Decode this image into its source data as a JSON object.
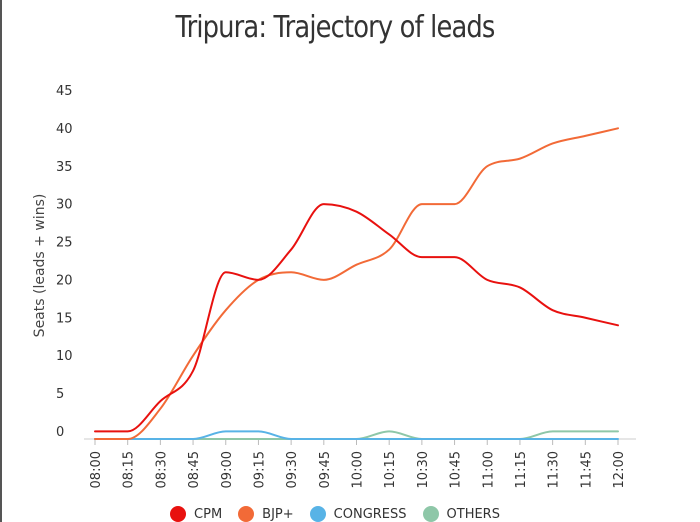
{
  "chart_data": {
    "type": "line",
    "title": "Tripura: Trajectory of leads",
    "xlabel": "",
    "ylabel": "Seats (leads + wins)",
    "categories": [
      "08:00",
      "08:15",
      "08:30",
      "08:45",
      "09:00",
      "09:15",
      "09:30",
      "09:45",
      "10:00",
      "10:15",
      "10:30",
      "10:45",
      "11:00",
      "11:15",
      "11:30",
      "11:45",
      "12:00"
    ],
    "yticks": [
      "0",
      "5",
      "10",
      "15",
      "20",
      "25",
      "30",
      "35",
      "40",
      "45"
    ],
    "ylim": [
      0,
      45
    ],
    "grid": false,
    "legend_position": "bottom",
    "series": [
      {
        "name": "CPM",
        "color": "#e8110f",
        "values": [
          1,
          1,
          5,
          9,
          22,
          21,
          25,
          31,
          30,
          27,
          24,
          24,
          21,
          20,
          17,
          16,
          15
        ]
      },
      {
        "name": "BJP+",
        "color": "#f26a37",
        "values": [
          0,
          0,
          4,
          11,
          17,
          21,
          22,
          21,
          23,
          25,
          31,
          31,
          36,
          37,
          39,
          40,
          41
        ]
      },
      {
        "name": "CONGRESS",
        "color": "#58b3e6",
        "values": [
          0,
          0,
          0,
          0,
          1,
          1,
          0,
          0,
          0,
          0,
          0,
          0,
          0,
          0,
          0,
          0,
          0
        ]
      },
      {
        "name": "OTHERS",
        "color": "#8ec7a8",
        "values": [
          0,
          0,
          0,
          0,
          0,
          0,
          0,
          0,
          0,
          1,
          0,
          0,
          0,
          0,
          1,
          1,
          1
        ]
      }
    ]
  }
}
